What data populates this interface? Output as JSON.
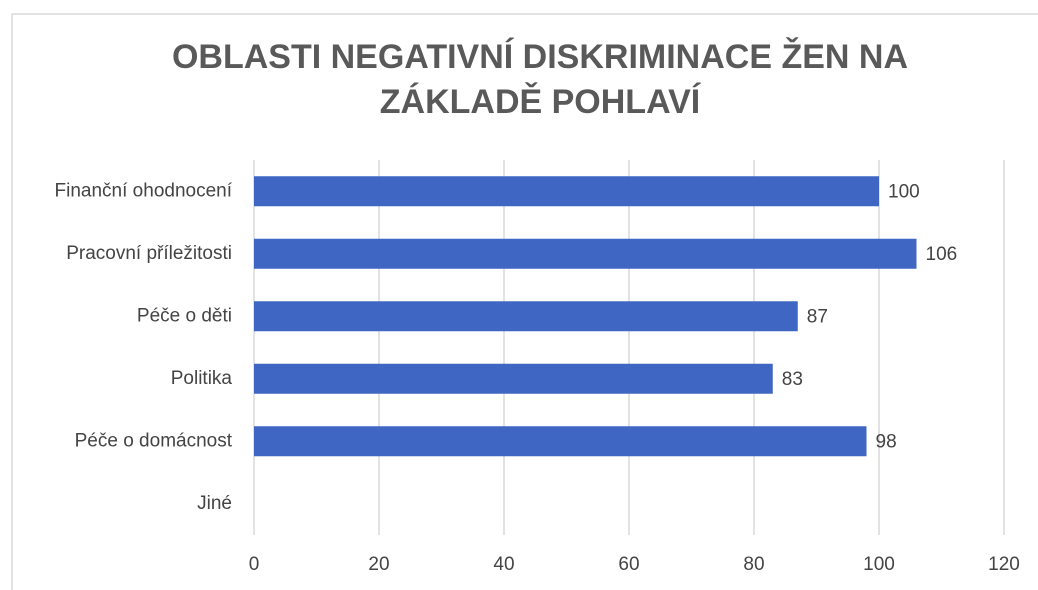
{
  "chart_data": {
    "type": "bar",
    "orientation": "horizontal",
    "title": [
      "OBLASTI NEGATIVNÍ DISKRIMINACE ŽEN NA",
      "ZÁKLADĚ POHLAVÍ"
    ],
    "categories": [
      "Finanční ohodnocení",
      "Pracovní příležitosti",
      "Péče o děti",
      "Politika",
      "Péče o domácnost",
      "Jiné"
    ],
    "values": [
      100,
      106,
      87,
      83,
      98,
      null
    ],
    "color": "#3f66c2",
    "xlim": [
      0,
      120
    ],
    "xticks": [
      0,
      20,
      40,
      60,
      80,
      100,
      120
    ],
    "grid": true
  }
}
